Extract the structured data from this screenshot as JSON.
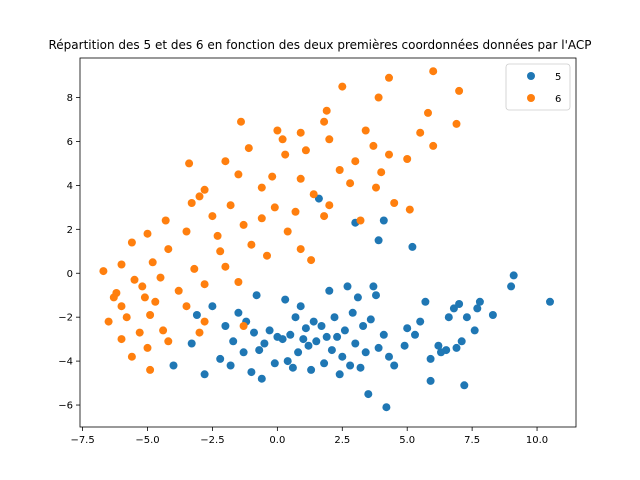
{
  "chart_data": {
    "type": "scatter",
    "title": "Répartition des 5 et des 6 en fonction des deux premières coordonnées données par l'ACP",
    "xlim": [
      -7.6,
      11.5
    ],
    "ylim": [
      -7.0,
      9.8
    ],
    "xticks": [
      -7.5,
      -5.0,
      -2.5,
      0.0,
      2.5,
      5.0,
      7.5,
      10.0
    ],
    "xtick_labels": [
      "−7.5",
      "−5.0",
      "−2.5",
      "0.0",
      "2.5",
      "5.0",
      "7.5",
      "10.0"
    ],
    "yticks": [
      -6,
      -4,
      -2,
      0,
      2,
      4,
      6,
      8
    ],
    "ytick_labels": [
      "−6",
      "−4",
      "−2",
      "0",
      "2",
      "4",
      "6",
      "8"
    ],
    "grid": false,
    "legend": "top-right",
    "series": [
      {
        "name": "5",
        "color": "#1f77b4",
        "points": [
          [
            10.5,
            -1.3
          ],
          [
            9.1,
            -0.1
          ],
          [
            9.0,
            -0.6
          ],
          [
            8.3,
            -1.9
          ],
          [
            7.8,
            -1.3
          ],
          [
            7.7,
            -1.6
          ],
          [
            7.6,
            -2.6
          ],
          [
            7.3,
            -2.0
          ],
          [
            7.2,
            -5.1
          ],
          [
            7.1,
            -3.1
          ],
          [
            7.0,
            -1.4
          ],
          [
            6.9,
            -3.4
          ],
          [
            6.8,
            -1.6
          ],
          [
            6.6,
            -2.0
          ],
          [
            6.5,
            -3.5
          ],
          [
            6.3,
            -3.6
          ],
          [
            6.2,
            -3.3
          ],
          [
            5.9,
            -4.9
          ],
          [
            5.9,
            -3.9
          ],
          [
            5.7,
            -1.3
          ],
          [
            5.5,
            -2.2
          ],
          [
            5.3,
            -2.8
          ],
          [
            5.2,
            1.2
          ],
          [
            5.0,
            -2.5
          ],
          [
            4.9,
            -3.3
          ],
          [
            4.5,
            -4.2
          ],
          [
            4.3,
            -3.8
          ],
          [
            4.2,
            -6.1
          ],
          [
            4.1,
            -2.8
          ],
          [
            4.1,
            2.4
          ],
          [
            3.9,
            -3.4
          ],
          [
            3.9,
            1.5
          ],
          [
            3.8,
            -1.0
          ],
          [
            3.7,
            -0.6
          ],
          [
            3.6,
            -2.1
          ],
          [
            3.5,
            -5.5
          ],
          [
            3.4,
            -3.6
          ],
          [
            3.3,
            -2.4
          ],
          [
            3.2,
            -4.3
          ],
          [
            3.1,
            -1.1
          ],
          [
            3.0,
            2.3
          ],
          [
            3.0,
            -3.2
          ],
          [
            2.9,
            -1.8
          ],
          [
            2.8,
            -4.2
          ],
          [
            2.7,
            -0.6
          ],
          [
            2.6,
            -2.6
          ],
          [
            2.5,
            -3.8
          ],
          [
            2.4,
            -4.6
          ],
          [
            2.3,
            -2.9
          ],
          [
            2.2,
            -2.0
          ],
          [
            2.1,
            -3.5
          ],
          [
            2.0,
            -0.8
          ],
          [
            1.9,
            -2.9
          ],
          [
            1.8,
            -4.1
          ],
          [
            1.7,
            -2.4
          ],
          [
            1.6,
            3.4
          ],
          [
            1.5,
            -3.1
          ],
          [
            1.4,
            -2.2
          ],
          [
            1.3,
            -4.4
          ],
          [
            1.2,
            -3.3
          ],
          [
            1.1,
            -2.5
          ],
          [
            1.0,
            -3.0
          ],
          [
            0.9,
            -1.5
          ],
          [
            0.8,
            -3.6
          ],
          [
            0.7,
            -2.0
          ],
          [
            0.6,
            -4.3
          ],
          [
            0.5,
            -2.8
          ],
          [
            0.4,
            -4.0
          ],
          [
            0.3,
            -1.2
          ],
          [
            0.2,
            -3.0
          ],
          [
            0.0,
            -2.9
          ],
          [
            -0.1,
            -4.1
          ],
          [
            -0.3,
            -2.6
          ],
          [
            -0.5,
            -3.2
          ],
          [
            -0.6,
            -4.8
          ],
          [
            -0.7,
            -3.5
          ],
          [
            -0.8,
            -1.0
          ],
          [
            -0.9,
            -2.7
          ],
          [
            -1.0,
            -4.5
          ],
          [
            -1.2,
            -2.2
          ],
          [
            -1.3,
            -3.6
          ],
          [
            -1.5,
            -1.8
          ],
          [
            -1.7,
            -3.1
          ],
          [
            -1.8,
            -4.2
          ],
          [
            -2.0,
            -2.4
          ],
          [
            -2.2,
            -3.9
          ],
          [
            -2.5,
            -1.5
          ],
          [
            -2.8,
            -4.6
          ],
          [
            -3.1,
            -1.9
          ],
          [
            -3.3,
            -3.2
          ],
          [
            -4.0,
            -4.2
          ]
        ]
      },
      {
        "name": "6",
        "color": "#ff7f0e",
        "points": [
          [
            6.0,
            9.2
          ],
          [
            7.0,
            8.3
          ],
          [
            4.3,
            8.9
          ],
          [
            3.9,
            8.0
          ],
          [
            2.5,
            8.5
          ],
          [
            1.9,
            7.4
          ],
          [
            5.8,
            7.3
          ],
          [
            1.8,
            6.9
          ],
          [
            6.9,
            6.8
          ],
          [
            -1.4,
            6.9
          ],
          [
            0.9,
            6.4
          ],
          [
            3.4,
            6.5
          ],
          [
            5.5,
            6.4
          ],
          [
            0.0,
            6.5
          ],
          [
            0.2,
            6.1
          ],
          [
            2.0,
            6.1
          ],
          [
            -1.1,
            5.7
          ],
          [
            3.7,
            5.8
          ],
          [
            6.0,
            5.8
          ],
          [
            -3.4,
            5.0
          ],
          [
            0.3,
            5.4
          ],
          [
            4.3,
            5.4
          ],
          [
            3.0,
            5.1
          ],
          [
            5.0,
            5.2
          ],
          [
            -2.0,
            5.1
          ],
          [
            2.4,
            4.7
          ],
          [
            -1.5,
            4.5
          ],
          [
            0.9,
            4.3
          ],
          [
            4.0,
            4.6
          ],
          [
            -2.8,
            3.8
          ],
          [
            -0.6,
            3.9
          ],
          [
            1.4,
            3.6
          ],
          [
            3.8,
            3.9
          ],
          [
            -3.3,
            3.2
          ],
          [
            -0.1,
            3.0
          ],
          [
            2.0,
            3.1
          ],
          [
            4.5,
            3.2
          ],
          [
            -4.3,
            2.4
          ],
          [
            -2.5,
            2.6
          ],
          [
            0.7,
            2.8
          ],
          [
            3.2,
            2.4
          ],
          [
            5.1,
            2.9
          ],
          [
            -5.0,
            1.8
          ],
          [
            -3.5,
            1.9
          ],
          [
            -1.3,
            2.2
          ],
          [
            0.4,
            1.9
          ],
          [
            1.8,
            2.6
          ],
          [
            -5.6,
            1.4
          ],
          [
            -4.2,
            1.1
          ],
          [
            -2.2,
            1.0
          ],
          [
            -0.4,
            0.8
          ],
          [
            1.3,
            0.6
          ],
          [
            -6.0,
            0.4
          ],
          [
            -4.8,
            0.5
          ],
          [
            -3.2,
            0.2
          ],
          [
            -1.5,
            -0.4
          ],
          [
            -6.7,
            0.1
          ],
          [
            -5.5,
            -0.3
          ],
          [
            -4.5,
            -0.2
          ],
          [
            -2.8,
            -0.5
          ],
          [
            -6.2,
            -0.9
          ],
          [
            -5.1,
            -1.1
          ],
          [
            -3.5,
            -1.5
          ],
          [
            -6.0,
            -1.5
          ],
          [
            -4.9,
            -1.9
          ],
          [
            -6.5,
            -2.2
          ],
          [
            -5.3,
            -2.7
          ],
          [
            -4.4,
            -2.6
          ],
          [
            -2.8,
            -2.2
          ],
          [
            -6.0,
            -3.0
          ],
          [
            -5.0,
            -3.4
          ],
          [
            -4.2,
            -3.1
          ],
          [
            -3.0,
            -2.7
          ],
          [
            -5.6,
            -3.8
          ],
          [
            -4.9,
            -4.4
          ],
          [
            -1.3,
            -2.4
          ],
          [
            -5.8,
            -2.0
          ],
          [
            -6.3,
            -1.1
          ],
          [
            -5.2,
            -0.6
          ],
          [
            -4.7,
            -1.3
          ],
          [
            -3.8,
            -0.8
          ],
          [
            -2.0,
            0.3
          ],
          [
            -1.0,
            1.3
          ],
          [
            -0.6,
            2.5
          ],
          [
            0.9,
            1.1
          ],
          [
            -2.3,
            1.7
          ],
          [
            -3.0,
            3.5
          ],
          [
            -1.8,
            3.1
          ],
          [
            -0.2,
            4.4
          ],
          [
            1.1,
            5.6
          ],
          [
            2.8,
            4.1
          ]
        ]
      }
    ]
  }
}
